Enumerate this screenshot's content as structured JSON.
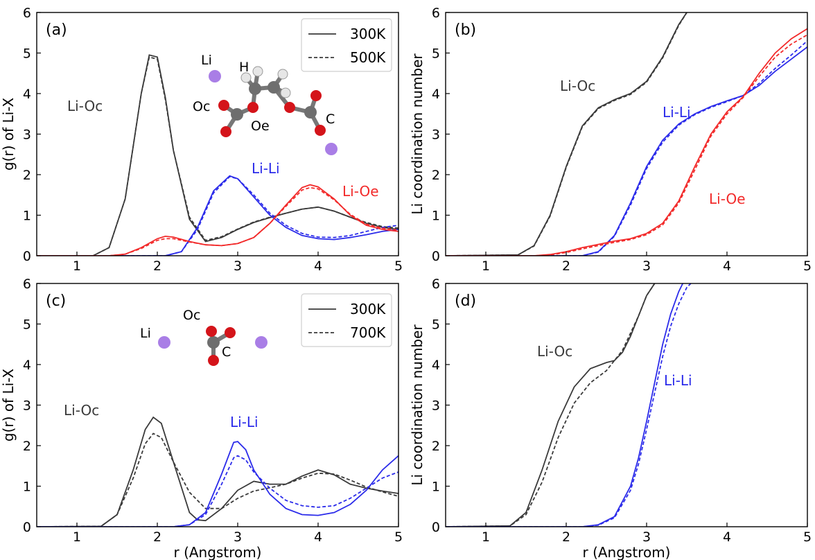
{
  "colors": {
    "black": "#3a3a3a",
    "blue": "#2b2bea",
    "red": "#f22a2a",
    "li_atom": "#a97ee6",
    "o_atom": "#d4141a",
    "c_atom": "#6e6e6e",
    "h_atom": "#e6e6e6"
  },
  "chart_data": [
    {
      "panel": "(a)",
      "type": "line",
      "xlabel": "",
      "ylabel": "g(r) of Li-X",
      "xlim": [
        0.5,
        5.0
      ],
      "ylim": [
        0,
        6
      ],
      "xticks": [
        "1",
        "2",
        "3",
        "4",
        "5"
      ],
      "yticks": [
        "0",
        "1",
        "2",
        "3",
        "4",
        "5",
        "6"
      ],
      "legend": {
        "placement": "top-right",
        "entries": [
          {
            "label": "300K",
            "style": "solid"
          },
          {
            "label": "500K",
            "style": "dashed"
          }
        ]
      },
      "annotations": [
        {
          "text": "Li-Oc",
          "color": "black"
        },
        {
          "text": "Li-Li",
          "color": "blue"
        },
        {
          "text": "Li-Oe",
          "color": "red"
        }
      ],
      "molecule_labels": [
        "Li",
        "H",
        "Oc",
        "Oe",
        "C"
      ],
      "series": [
        {
          "color": "black",
          "style": "solid",
          "x": [
            0.5,
            1.2,
            1.4,
            1.6,
            1.8,
            1.9,
            2.0,
            2.1,
            2.2,
            2.4,
            2.6,
            2.8,
            3.0,
            3.2,
            3.4,
            3.6,
            3.8,
            4.0,
            4.2,
            4.4,
            4.6,
            4.8,
            5.0
          ],
          "y": [
            0,
            0,
            0.2,
            1.4,
            4.0,
            4.95,
            4.9,
            3.9,
            2.6,
            0.9,
            0.35,
            0.45,
            0.65,
            0.82,
            0.94,
            1.05,
            1.15,
            1.2,
            1.1,
            0.95,
            0.8,
            0.7,
            0.65
          ]
        },
        {
          "color": "black",
          "style": "dashed",
          "x": [
            0.5,
            1.2,
            1.4,
            1.6,
            1.8,
            1.9,
            2.0,
            2.1,
            2.2,
            2.4,
            2.6,
            2.8,
            3.0,
            3.2,
            3.4,
            3.6,
            3.8,
            4.0,
            4.2,
            4.4,
            4.6,
            4.8,
            5.0
          ],
          "y": [
            0,
            0,
            0.2,
            1.4,
            4.0,
            4.9,
            4.85,
            3.85,
            2.6,
            0.95,
            0.38,
            0.47,
            0.66,
            0.83,
            0.95,
            1.05,
            1.15,
            1.2,
            1.1,
            0.95,
            0.82,
            0.72,
            0.68
          ]
        },
        {
          "color": "blue",
          "style": "solid",
          "x": [
            0.5,
            2.1,
            2.3,
            2.5,
            2.7,
            2.9,
            3.0,
            3.2,
            3.4,
            3.6,
            3.8,
            4.0,
            4.2,
            4.4,
            4.6,
            4.8,
            5.0
          ],
          "y": [
            0,
            0,
            0.1,
            0.7,
            1.6,
            1.97,
            1.9,
            1.45,
            1.0,
            0.7,
            0.5,
            0.42,
            0.4,
            0.45,
            0.52,
            0.6,
            0.65
          ]
        },
        {
          "color": "blue",
          "style": "dashed",
          "x": [
            0.5,
            2.1,
            2.3,
            2.5,
            2.7,
            2.9,
            3.0,
            3.2,
            3.4,
            3.6,
            3.8,
            4.0,
            4.2,
            4.4,
            4.6,
            4.8,
            5.0
          ],
          "y": [
            0,
            0,
            0.1,
            0.65,
            1.55,
            1.95,
            1.9,
            1.5,
            1.05,
            0.75,
            0.55,
            0.46,
            0.45,
            0.5,
            0.6,
            0.7,
            0.75
          ]
        },
        {
          "color": "red",
          "style": "solid",
          "x": [
            0.5,
            1.4,
            1.6,
            1.8,
            2.0,
            2.1,
            2.2,
            2.4,
            2.6,
            2.8,
            3.0,
            3.2,
            3.4,
            3.6,
            3.8,
            3.9,
            4.0,
            4.2,
            4.4,
            4.6,
            4.8,
            5.0
          ],
          "y": [
            0,
            0,
            0.04,
            0.2,
            0.42,
            0.48,
            0.46,
            0.35,
            0.27,
            0.25,
            0.3,
            0.45,
            0.8,
            1.25,
            1.68,
            1.75,
            1.7,
            1.4,
            1.0,
            0.75,
            0.65,
            0.6
          ]
        },
        {
          "color": "red",
          "style": "dashed",
          "x": [
            0.5,
            1.4,
            1.6,
            1.8,
            2.0,
            2.1,
            2.2,
            2.4,
            2.6,
            2.8,
            3.0,
            3.2,
            3.4,
            3.6,
            3.8,
            3.9,
            4.0,
            4.2,
            4.4,
            4.6,
            4.8,
            5.0
          ],
          "y": [
            0,
            0,
            0.04,
            0.18,
            0.38,
            0.42,
            0.42,
            0.34,
            0.27,
            0.25,
            0.3,
            0.45,
            0.8,
            1.22,
            1.62,
            1.68,
            1.65,
            1.38,
            1.02,
            0.78,
            0.68,
            0.63
          ]
        }
      ]
    },
    {
      "panel": "(b)",
      "type": "line",
      "xlabel": "",
      "ylabel": "Li coordination number",
      "xlim": [
        0.5,
        5.0
      ],
      "ylim": [
        0,
        6
      ],
      "xticks": [
        "1",
        "2",
        "3",
        "4",
        "5"
      ],
      "yticks": [
        "0",
        "1",
        "2",
        "3",
        "4",
        "5",
        "6"
      ],
      "annotations": [
        {
          "text": "Li-Oc",
          "color": "black"
        },
        {
          "text": "Li-Li",
          "color": "blue"
        },
        {
          "text": "Li-Oe",
          "color": "red"
        }
      ],
      "series": [
        {
          "color": "black",
          "style": "solid",
          "x": [
            0.5,
            1.4,
            1.6,
            1.8,
            2.0,
            2.2,
            2.4,
            2.6,
            2.8,
            3.0,
            3.2,
            3.4,
            3.5
          ],
          "y": [
            0,
            0.02,
            0.25,
            1.0,
            2.2,
            3.2,
            3.65,
            3.85,
            4.0,
            4.3,
            4.9,
            5.7,
            6.0
          ]
        },
        {
          "color": "black",
          "style": "dashed",
          "x": [
            0.5,
            1.4,
            1.6,
            1.8,
            2.0,
            2.2,
            2.4,
            2.6,
            2.8,
            3.0,
            3.2,
            3.4,
            3.5
          ],
          "y": [
            0,
            0.02,
            0.24,
            0.98,
            2.18,
            3.18,
            3.63,
            3.83,
            3.98,
            4.28,
            4.88,
            5.68,
            6.0
          ]
        },
        {
          "color": "blue",
          "style": "solid",
          "x": [
            0.5,
            2.2,
            2.4,
            2.6,
            2.8,
            3.0,
            3.2,
            3.4,
            3.6,
            3.8,
            4.0,
            4.2,
            4.4,
            4.6,
            4.8,
            5.0
          ],
          "y": [
            0,
            0,
            0.1,
            0.5,
            1.3,
            2.2,
            2.85,
            3.25,
            3.5,
            3.68,
            3.82,
            3.95,
            4.2,
            4.55,
            4.85,
            5.15
          ]
        },
        {
          "color": "blue",
          "style": "dashed",
          "x": [
            0.5,
            2.2,
            2.4,
            2.6,
            2.8,
            3.0,
            3.2,
            3.4,
            3.6,
            3.8,
            4.0,
            4.2,
            4.4,
            4.6,
            4.8,
            5.0
          ],
          "y": [
            0,
            0,
            0.09,
            0.48,
            1.25,
            2.15,
            2.8,
            3.22,
            3.48,
            3.66,
            3.8,
            3.95,
            4.25,
            4.62,
            4.95,
            5.3
          ]
        },
        {
          "color": "red",
          "style": "solid",
          "x": [
            0.5,
            1.6,
            1.8,
            2.0,
            2.2,
            2.4,
            2.6,
            2.8,
            3.0,
            3.2,
            3.4,
            3.6,
            3.8,
            4.0,
            4.2,
            4.4,
            4.6,
            4.8,
            5.0
          ],
          "y": [
            0,
            0,
            0.03,
            0.1,
            0.2,
            0.28,
            0.36,
            0.42,
            0.55,
            0.8,
            1.35,
            2.2,
            3.0,
            3.55,
            3.92,
            4.5,
            5.0,
            5.35,
            5.6
          ]
        },
        {
          "color": "red",
          "style": "dashed",
          "x": [
            0.5,
            1.6,
            1.8,
            2.0,
            2.2,
            2.4,
            2.6,
            2.8,
            3.0,
            3.2,
            3.4,
            3.6,
            3.8,
            4.0,
            4.2,
            4.4,
            4.6,
            4.8,
            5.0
          ],
          "y": [
            0,
            0,
            0.02,
            0.08,
            0.17,
            0.25,
            0.33,
            0.4,
            0.52,
            0.76,
            1.3,
            2.12,
            2.95,
            3.5,
            3.9,
            4.42,
            4.9,
            5.22,
            5.45
          ]
        }
      ]
    },
    {
      "panel": "(c)",
      "type": "line",
      "xlabel": "r (Angstrom)",
      "ylabel": "g(r) of Li-X",
      "xlim": [
        0.5,
        5.0
      ],
      "ylim": [
        0,
        6
      ],
      "xticks": [
        "1",
        "2",
        "3",
        "4",
        "5"
      ],
      "yticks": [
        "0",
        "1",
        "2",
        "3",
        "4",
        "5",
        "6"
      ],
      "legend": {
        "placement": "top-right",
        "entries": [
          {
            "label": "300K",
            "style": "solid"
          },
          {
            "label": "700K",
            "style": "dashed"
          }
        ]
      },
      "annotations": [
        {
          "text": "Li-Oc",
          "color": "black"
        },
        {
          "text": "Li-Li",
          "color": "blue"
        }
      ],
      "molecule_labels": [
        "Oc",
        "Li",
        "C"
      ],
      "series": [
        {
          "color": "black",
          "style": "solid",
          "x": [
            0.5,
            1.3,
            1.5,
            1.7,
            1.85,
            1.95,
            2.05,
            2.2,
            2.4,
            2.5,
            2.6,
            2.8,
            3.0,
            3.2,
            3.4,
            3.6,
            3.8,
            4.0,
            4.2,
            4.4,
            4.6,
            4.8,
            5.0
          ],
          "y": [
            0,
            0.01,
            0.3,
            1.4,
            2.4,
            2.7,
            2.55,
            1.6,
            0.35,
            0.17,
            0.15,
            0.45,
            0.9,
            1.12,
            1.05,
            1.05,
            1.25,
            1.4,
            1.28,
            1.05,
            0.95,
            0.88,
            0.82
          ]
        },
        {
          "color": "black",
          "style": "dashed",
          "x": [
            0.5,
            1.3,
            1.5,
            1.7,
            1.85,
            1.95,
            2.05,
            2.2,
            2.4,
            2.6,
            2.8,
            3.0,
            3.2,
            3.4,
            3.6,
            3.8,
            4.0,
            4.2,
            4.4,
            4.6,
            4.8,
            5.0
          ],
          "y": [
            0,
            0.01,
            0.3,
            1.2,
            2.05,
            2.3,
            2.2,
            1.6,
            0.85,
            0.45,
            0.45,
            0.7,
            0.88,
            0.96,
            1.05,
            1.2,
            1.32,
            1.3,
            1.15,
            0.98,
            0.86,
            0.75
          ]
        },
        {
          "color": "blue",
          "style": "solid",
          "x": [
            0.5,
            2.2,
            2.4,
            2.6,
            2.8,
            2.95,
            3.0,
            3.1,
            3.2,
            3.4,
            3.6,
            3.8,
            4.0,
            4.2,
            4.4,
            4.6,
            4.8,
            5.0
          ],
          "y": [
            0,
            0,
            0.05,
            0.35,
            1.3,
            2.08,
            2.1,
            1.9,
            1.4,
            0.8,
            0.45,
            0.3,
            0.28,
            0.35,
            0.55,
            0.9,
            1.4,
            1.75
          ]
        },
        {
          "color": "blue",
          "style": "dashed",
          "x": [
            0.5,
            2.2,
            2.4,
            2.6,
            2.8,
            2.95,
            3.0,
            3.1,
            3.2,
            3.4,
            3.6,
            3.8,
            4.0,
            4.2,
            4.4,
            4.6,
            4.8,
            5.0
          ],
          "y": [
            0,
            0,
            0.05,
            0.3,
            1.05,
            1.7,
            1.75,
            1.65,
            1.35,
            0.95,
            0.65,
            0.52,
            0.48,
            0.52,
            0.7,
            0.95,
            1.2,
            1.35
          ]
        }
      ]
    },
    {
      "panel": "(d)",
      "type": "line",
      "xlabel": "r (Angstrom)",
      "ylabel": "Li coordination number",
      "xlim": [
        0.5,
        5.0
      ],
      "ylim": [
        0,
        6
      ],
      "xticks": [
        "1",
        "2",
        "3",
        "4",
        "5"
      ],
      "yticks": [
        "0",
        "1",
        "2",
        "3",
        "4",
        "5",
        "6"
      ],
      "annotations": [
        {
          "text": "Li-Oc",
          "color": "black"
        },
        {
          "text": "Li-Li",
          "color": "blue"
        }
      ],
      "series": [
        {
          "color": "black",
          "style": "solid",
          "x": [
            0.5,
            1.3,
            1.5,
            1.7,
            1.9,
            2.1,
            2.3,
            2.5,
            2.6,
            2.7,
            2.8,
            2.9,
            3.0,
            3.1
          ],
          "y": [
            0,
            0.02,
            0.35,
            1.4,
            2.6,
            3.45,
            3.9,
            4.05,
            4.1,
            4.3,
            4.7,
            5.2,
            5.7,
            6.0
          ]
        },
        {
          "color": "black",
          "style": "dashed",
          "x": [
            0.5,
            1.3,
            1.5,
            1.7,
            1.9,
            2.1,
            2.3,
            2.5,
            2.7,
            2.9,
            3.0,
            3.1
          ],
          "y": [
            0,
            0.02,
            0.3,
            1.1,
            2.2,
            3.05,
            3.55,
            3.85,
            4.35,
            5.2,
            5.7,
            6.0
          ]
        },
        {
          "color": "blue",
          "style": "solid",
          "x": [
            0.5,
            2.2,
            2.4,
            2.6,
            2.8,
            2.9,
            3.0,
            3.1,
            3.2,
            3.3,
            3.4,
            3.45
          ],
          "y": [
            0,
            0,
            0.05,
            0.25,
            1.0,
            1.7,
            2.6,
            3.55,
            4.5,
            5.25,
            5.8,
            6.0
          ]
        },
        {
          "color": "blue",
          "style": "dashed",
          "x": [
            0.5,
            2.2,
            2.4,
            2.6,
            2.8,
            2.9,
            3.0,
            3.1,
            3.2,
            3.3,
            3.4,
            3.5,
            3.55
          ],
          "y": [
            0,
            0,
            0.04,
            0.22,
            0.9,
            1.55,
            2.4,
            3.3,
            4.2,
            4.95,
            5.5,
            5.9,
            6.0
          ]
        }
      ]
    }
  ]
}
